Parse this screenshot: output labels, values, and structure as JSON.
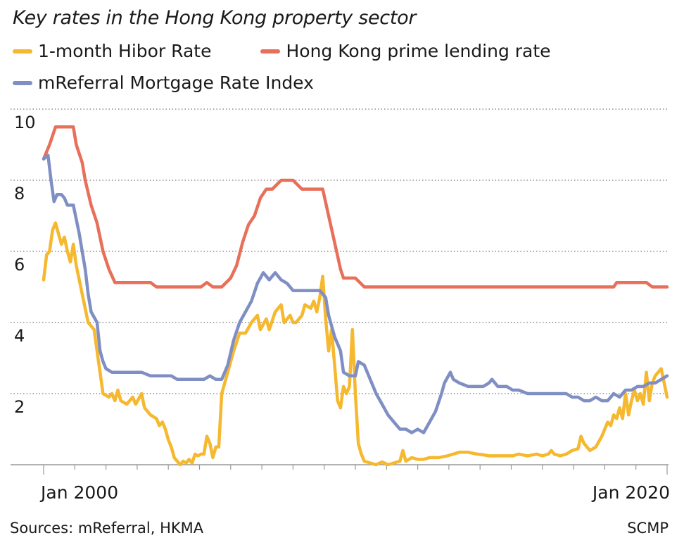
{
  "title": "Key rates in the Hong Kong property sector",
  "footer": {
    "sources": "Sources: mReferral, HKMA",
    "credit": "SCMP"
  },
  "colors": {
    "hibor": "#f5b82e",
    "prime": "#e8705a",
    "mortgage": "#7f8fc4",
    "grid": "#555555",
    "axis": "#999999"
  },
  "chart_data": {
    "type": "line",
    "title": "Key rates in the Hong Kong property sector",
    "xlabel": "",
    "ylabel": "",
    "x_range": [
      2000.0,
      2020.0
    ],
    "ylim": [
      0,
      10
    ],
    "yticks": [
      2,
      4,
      6,
      8,
      10
    ],
    "ytick_labels": [
      "2",
      "4",
      "6",
      "8",
      "10"
    ],
    "xtick_labels": [
      {
        "x": 2000.0,
        "label": "Jan 2000"
      },
      {
        "x": 2020.0,
        "label": "Jan 2020"
      }
    ],
    "legend_placement": "top",
    "grid": "horizontal dotted",
    "series": [
      {
        "name": "1-month Hibor Rate",
        "color": "#f5b82e",
        "points": [
          [
            2000.0,
            5.2
          ],
          [
            2000.1,
            5.9
          ],
          [
            2000.2,
            6.0
          ],
          [
            2000.3,
            6.6
          ],
          [
            2000.4,
            6.8
          ],
          [
            2000.5,
            6.5
          ],
          [
            2000.6,
            6.2
          ],
          [
            2000.7,
            6.4
          ],
          [
            2000.8,
            6.0
          ],
          [
            2000.9,
            5.7
          ],
          [
            2001.0,
            6.2
          ],
          [
            2001.1,
            5.6
          ],
          [
            2001.3,
            4.8
          ],
          [
            2001.5,
            4.0
          ],
          [
            2001.7,
            3.8
          ],
          [
            2001.8,
            3.2
          ],
          [
            2001.9,
            2.6
          ],
          [
            2002.0,
            2.0
          ],
          [
            2002.2,
            1.9
          ],
          [
            2002.3,
            2.0
          ],
          [
            2002.4,
            1.8
          ],
          [
            2002.5,
            2.1
          ],
          [
            2002.6,
            1.8
          ],
          [
            2002.8,
            1.7
          ],
          [
            2003.0,
            1.9
          ],
          [
            2003.1,
            1.7
          ],
          [
            2003.3,
            2.0
          ],
          [
            2003.4,
            1.6
          ],
          [
            2003.6,
            1.4
          ],
          [
            2003.8,
            1.3
          ],
          [
            2003.9,
            1.1
          ],
          [
            2004.0,
            1.2
          ],
          [
            2004.1,
            1.0
          ],
          [
            2004.2,
            0.7
          ],
          [
            2004.3,
            0.5
          ],
          [
            2004.4,
            0.2
          ],
          [
            2004.5,
            0.1
          ],
          [
            2004.6,
            0.0
          ],
          [
            2004.7,
            0.1
          ],
          [
            2004.8,
            0.05
          ],
          [
            2004.9,
            0.15
          ],
          [
            2005.0,
            0.05
          ],
          [
            2005.1,
            0.3
          ],
          [
            2005.2,
            0.25
          ],
          [
            2005.3,
            0.3
          ],
          [
            2005.4,
            0.3
          ],
          [
            2005.5,
            0.8
          ],
          [
            2005.6,
            0.6
          ],
          [
            2005.7,
            0.2
          ],
          [
            2005.8,
            0.5
          ],
          [
            2005.9,
            0.5
          ],
          [
            2006.0,
            2.0
          ],
          [
            2006.2,
            2.6
          ],
          [
            2006.4,
            3.2
          ],
          [
            2006.6,
            3.7
          ],
          [
            2006.8,
            3.7
          ],
          [
            2007.0,
            4.0
          ],
          [
            2007.2,
            4.2
          ],
          [
            2007.3,
            3.8
          ],
          [
            2007.5,
            4.1
          ],
          [
            2007.6,
            3.8
          ],
          [
            2007.8,
            4.3
          ],
          [
            2008.0,
            4.5
          ],
          [
            2008.1,
            4.0
          ],
          [
            2008.3,
            4.2
          ],
          [
            2008.4,
            4.0
          ],
          [
            2008.5,
            4.0
          ],
          [
            2008.7,
            4.2
          ],
          [
            2008.8,
            4.5
          ],
          [
            2009.0,
            4.4
          ],
          [
            2009.1,
            4.6
          ],
          [
            2009.2,
            4.3
          ],
          [
            2009.3,
            4.7
          ],
          [
            2009.4,
            5.3
          ],
          [
            2009.5,
            4.1
          ],
          [
            2009.6,
            3.2
          ],
          [
            2009.7,
            3.8
          ],
          [
            2009.8,
            2.8
          ],
          [
            2009.9,
            1.8
          ],
          [
            2010.0,
            1.6
          ],
          [
            2010.1,
            2.2
          ],
          [
            2010.2,
            2.0
          ],
          [
            2010.3,
            2.2
          ],
          [
            2010.4,
            3.8
          ],
          [
            2010.5,
            2.0
          ],
          [
            2010.6,
            0.6
          ],
          [
            2010.7,
            0.3
          ],
          [
            2010.8,
            0.1
          ],
          [
            2011.0,
            0.05
          ],
          [
            2011.2,
            0.0
          ],
          [
            2011.4,
            0.08
          ],
          [
            2011.6,
            0.0
          ],
          [
            2011.8,
            0.05
          ],
          [
            2012.0,
            0.1
          ],
          [
            2012.1,
            0.4
          ],
          [
            2012.2,
            0.1
          ],
          [
            2012.4,
            0.2
          ],
          [
            2012.6,
            0.15
          ],
          [
            2012.8,
            0.15
          ],
          [
            2013.0,
            0.2
          ],
          [
            2013.3,
            0.2
          ],
          [
            2013.6,
            0.25
          ],
          [
            2013.8,
            0.3
          ],
          [
            2014.0,
            0.35
          ],
          [
            2014.3,
            0.35
          ],
          [
            2014.6,
            0.3
          ],
          [
            2014.8,
            0.28
          ],
          [
            2015.0,
            0.25
          ],
          [
            2015.3,
            0.25
          ],
          [
            2015.6,
            0.25
          ],
          [
            2015.8,
            0.25
          ],
          [
            2016.0,
            0.3
          ],
          [
            2016.3,
            0.25
          ],
          [
            2016.6,
            0.3
          ],
          [
            2016.8,
            0.25
          ],
          [
            2017.0,
            0.3
          ],
          [
            2017.1,
            0.4
          ],
          [
            2017.2,
            0.3
          ],
          [
            2017.4,
            0.25
          ],
          [
            2017.6,
            0.3
          ],
          [
            2017.8,
            0.4
          ],
          [
            2018.0,
            0.45
          ],
          [
            2018.1,
            0.8
          ],
          [
            2018.2,
            0.6
          ],
          [
            2018.3,
            0.5
          ],
          [
            2018.4,
            0.4
          ],
          [
            2018.6,
            0.5
          ],
          [
            2018.8,
            0.8
          ],
          [
            2019.0,
            1.2
          ],
          [
            2019.1,
            1.1
          ],
          [
            2019.2,
            1.4
          ],
          [
            2019.3,
            1.3
          ],
          [
            2019.4,
            1.6
          ],
          [
            2019.5,
            1.3
          ],
          [
            2019.6,
            2.0
          ],
          [
            2019.7,
            1.4
          ],
          [
            2019.8,
            1.8
          ],
          [
            2019.9,
            2.1
          ],
          [
            2020.0,
            1.8
          ],
          [
            2020.1,
            2.0
          ],
          [
            2020.2,
            1.7
          ],
          [
            2020.3,
            2.6
          ],
          [
            2020.4,
            1.8
          ],
          [
            2020.5,
            2.3
          ],
          [
            2020.6,
            2.5
          ],
          [
            2020.8,
            2.7
          ],
          [
            2021.0,
            1.9
          ]
        ]
      },
      {
        "name": "Hong Kong prime lending rate",
        "color": "#e8705a",
        "points": [
          [
            2000.0,
            8.6
          ],
          [
            2000.2,
            9.0
          ],
          [
            2000.4,
            9.5
          ],
          [
            2000.5,
            9.5
          ],
          [
            2001.0,
            9.5
          ],
          [
            2001.1,
            9.0
          ],
          [
            2001.3,
            8.5
          ],
          [
            2001.4,
            8.0
          ],
          [
            2001.6,
            7.3
          ],
          [
            2001.8,
            6.8
          ],
          [
            2002.0,
            6.0
          ],
          [
            2002.2,
            5.5
          ],
          [
            2002.4,
            5.125
          ],
          [
            2003.0,
            5.125
          ],
          [
            2003.6,
            5.125
          ],
          [
            2003.8,
            5.0
          ],
          [
            2004.6,
            5.0
          ],
          [
            2005.0,
            5.0
          ],
          [
            2005.3,
            5.0
          ],
          [
            2005.5,
            5.125
          ],
          [
            2005.7,
            5.0
          ],
          [
            2006.0,
            5.0
          ],
          [
            2006.3,
            5.25
          ],
          [
            2006.5,
            5.6
          ],
          [
            2006.7,
            6.25
          ],
          [
            2006.9,
            6.75
          ],
          [
            2007.1,
            7.0
          ],
          [
            2007.3,
            7.5
          ],
          [
            2007.5,
            7.75
          ],
          [
            2007.7,
            7.75
          ],
          [
            2008.0,
            8.0
          ],
          [
            2008.4,
            8.0
          ],
          [
            2008.7,
            7.75
          ],
          [
            2009.0,
            7.75
          ],
          [
            2009.2,
            7.75
          ],
          [
            2009.4,
            7.75
          ],
          [
            2009.6,
            7.0
          ],
          [
            2009.8,
            6.25
          ],
          [
            2010.0,
            5.5
          ],
          [
            2010.1,
            5.25
          ],
          [
            2010.5,
            5.25
          ],
          [
            2010.8,
            5.0
          ],
          [
            2012.0,
            5.0
          ],
          [
            2014.0,
            5.0
          ],
          [
            2016.0,
            5.0
          ],
          [
            2018.0,
            5.0
          ],
          [
            2019.2,
            5.0
          ],
          [
            2019.3,
            5.125
          ],
          [
            2019.7,
            5.125
          ],
          [
            2020.0,
            5.125
          ],
          [
            2020.3,
            5.125
          ],
          [
            2020.5,
            5.0
          ],
          [
            2021.0,
            5.0
          ]
        ]
      },
      {
        "name": "mReferral Mortgage Rate Index",
        "color": "#7f8fc4",
        "points": [
          [
            2000.0,
            8.6
          ],
          [
            2000.15,
            8.7
          ],
          [
            2000.25,
            8.0
          ],
          [
            2000.35,
            7.4
          ],
          [
            2000.45,
            7.6
          ],
          [
            2000.6,
            7.6
          ],
          [
            2000.7,
            7.5
          ],
          [
            2000.8,
            7.3
          ],
          [
            2001.0,
            7.3
          ],
          [
            2001.1,
            6.9
          ],
          [
            2001.2,
            6.5
          ],
          [
            2001.3,
            6.0
          ],
          [
            2001.4,
            5.5
          ],
          [
            2001.5,
            4.8
          ],
          [
            2001.6,
            4.3
          ],
          [
            2001.8,
            4.0
          ],
          [
            2001.9,
            3.2
          ],
          [
            2002.0,
            2.9
          ],
          [
            2002.1,
            2.7
          ],
          [
            2002.3,
            2.6
          ],
          [
            2003.0,
            2.6
          ],
          [
            2003.3,
            2.6
          ],
          [
            2003.6,
            2.5
          ],
          [
            2004.0,
            2.5
          ],
          [
            2004.3,
            2.5
          ],
          [
            2004.5,
            2.4
          ],
          [
            2005.0,
            2.4
          ],
          [
            2005.4,
            2.4
          ],
          [
            2005.6,
            2.5
          ],
          [
            2005.8,
            2.4
          ],
          [
            2006.0,
            2.4
          ],
          [
            2006.2,
            2.8
          ],
          [
            2006.4,
            3.5
          ],
          [
            2006.6,
            4.0
          ],
          [
            2006.8,
            4.3
          ],
          [
            2007.0,
            4.6
          ],
          [
            2007.2,
            5.1
          ],
          [
            2007.4,
            5.4
          ],
          [
            2007.6,
            5.2
          ],
          [
            2007.8,
            5.4
          ],
          [
            2008.0,
            5.2
          ],
          [
            2008.2,
            5.1
          ],
          [
            2008.4,
            4.9
          ],
          [
            2008.6,
            4.9
          ],
          [
            2009.0,
            4.9
          ],
          [
            2009.3,
            4.9
          ],
          [
            2009.5,
            4.7
          ],
          [
            2009.6,
            4.2
          ],
          [
            2009.8,
            3.6
          ],
          [
            2010.0,
            3.2
          ],
          [
            2010.1,
            2.6
          ],
          [
            2010.3,
            2.5
          ],
          [
            2010.5,
            2.5
          ],
          [
            2010.6,
            2.9
          ],
          [
            2010.8,
            2.8
          ],
          [
            2010.9,
            2.6
          ],
          [
            2011.0,
            2.4
          ],
          [
            2011.2,
            2.0
          ],
          [
            2011.4,
            1.7
          ],
          [
            2011.6,
            1.4
          ],
          [
            2011.8,
            1.2
          ],
          [
            2012.0,
            1.0
          ],
          [
            2012.2,
            1.0
          ],
          [
            2012.4,
            0.9
          ],
          [
            2012.6,
            1.0
          ],
          [
            2012.8,
            0.9
          ],
          [
            2013.0,
            1.2
          ],
          [
            2013.2,
            1.5
          ],
          [
            2013.4,
            2.0
          ],
          [
            2013.5,
            2.3
          ],
          [
            2013.7,
            2.6
          ],
          [
            2013.8,
            2.4
          ],
          [
            2014.0,
            2.3
          ],
          [
            2014.3,
            2.2
          ],
          [
            2014.6,
            2.2
          ],
          [
            2014.8,
            2.2
          ],
          [
            2015.0,
            2.3
          ],
          [
            2015.1,
            2.4
          ],
          [
            2015.3,
            2.2
          ],
          [
            2015.6,
            2.2
          ],
          [
            2015.8,
            2.1
          ],
          [
            2016.0,
            2.1
          ],
          [
            2016.3,
            2.0
          ],
          [
            2016.6,
            2.0
          ],
          [
            2016.8,
            2.0
          ],
          [
            2017.0,
            2.0
          ],
          [
            2017.3,
            2.0
          ],
          [
            2017.6,
            2.0
          ],
          [
            2017.8,
            1.9
          ],
          [
            2018.0,
            1.9
          ],
          [
            2018.2,
            1.8
          ],
          [
            2018.4,
            1.8
          ],
          [
            2018.6,
            1.9
          ],
          [
            2018.8,
            1.8
          ],
          [
            2019.0,
            1.8
          ],
          [
            2019.2,
            2.0
          ],
          [
            2019.4,
            1.9
          ],
          [
            2019.6,
            2.1
          ],
          [
            2019.8,
            2.1
          ],
          [
            2020.0,
            2.2
          ],
          [
            2020.2,
            2.2
          ],
          [
            2020.4,
            2.3
          ],
          [
            2020.6,
            2.3
          ],
          [
            2020.8,
            2.4
          ],
          [
            2021.0,
            2.5
          ]
        ]
      }
    ]
  }
}
